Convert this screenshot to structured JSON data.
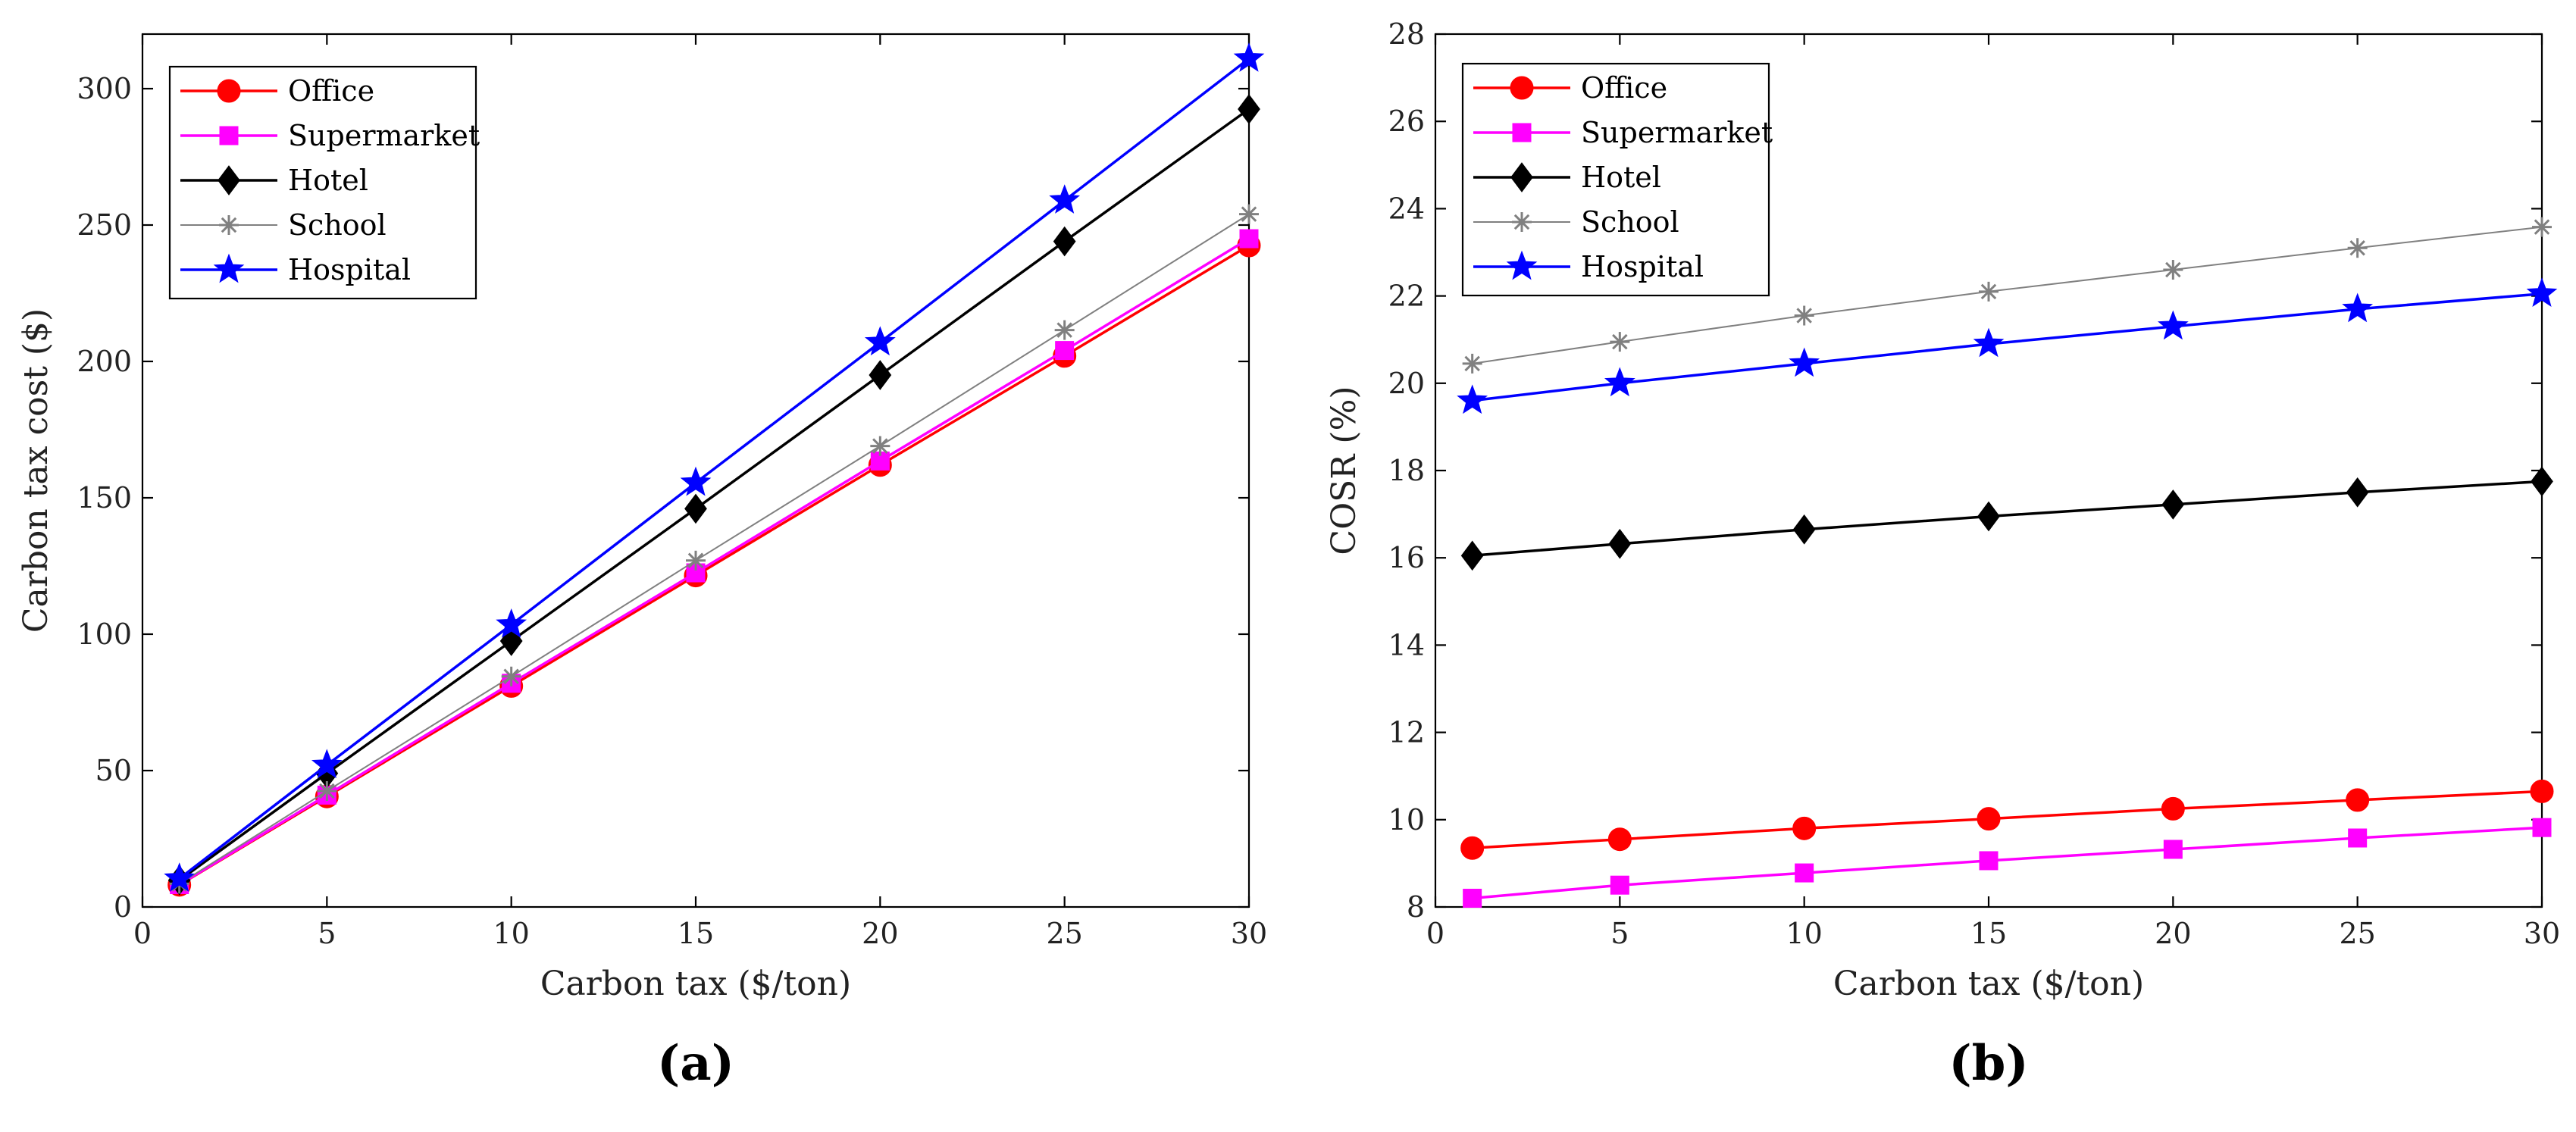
{
  "chart_data": [
    {
      "type": "line",
      "panel_label": "(a)",
      "xlabel": "Carbon tax ($/ton)",
      "ylabel": "Carbon tax cost ($)",
      "xlim": [
        0,
        30
      ],
      "ylim": [
        0,
        320
      ],
      "xticks": [
        0,
        5,
        10,
        15,
        20,
        25,
        30
      ],
      "yticks": [
        0,
        50,
        100,
        150,
        200,
        250,
        300
      ],
      "grid": false,
      "legend_position": "top-left",
      "x": [
        1,
        5,
        10,
        15,
        20,
        25,
        30
      ],
      "series": [
        {
          "name": "Office",
          "color": "#ff0000",
          "marker": "circle",
          "values": [
            8.1,
            40.5,
            81,
            121.5,
            162,
            202,
            242.5
          ]
        },
        {
          "name": "Supermarket",
          "color": "#ff00ff",
          "marker": "square",
          "values": [
            8.2,
            41,
            82,
            122.5,
            163.5,
            204,
            245
          ]
        },
        {
          "name": "Hotel",
          "color": "#000000",
          "marker": "diamond",
          "values": [
            9.8,
            49,
            97.5,
            146,
            195,
            244,
            292.5
          ]
        },
        {
          "name": "School",
          "color": "#808080",
          "marker": "asterisk",
          "values": [
            8.5,
            42.5,
            84.5,
            127,
            169,
            211.5,
            254
          ]
        },
        {
          "name": "Hospital",
          "color": "#0000ff",
          "marker": "star",
          "values": [
            10.4,
            52,
            103.5,
            155.5,
            207,
            259,
            311
          ]
        }
      ]
    },
    {
      "type": "line",
      "panel_label": "(b)",
      "xlabel": "Carbon tax ($/ton)",
      "ylabel": "COSR (%)",
      "xlim": [
        0,
        30
      ],
      "ylim": [
        8,
        28
      ],
      "xticks": [
        0,
        5,
        10,
        15,
        20,
        25,
        30
      ],
      "yticks": [
        8,
        10,
        12,
        14,
        16,
        18,
        20,
        22,
        24,
        26,
        28
      ],
      "grid": false,
      "legend_position": "top-left",
      "x": [
        1,
        5,
        10,
        15,
        20,
        25,
        30
      ],
      "series": [
        {
          "name": "Office",
          "color": "#ff0000",
          "marker": "circle",
          "values": [
            9.35,
            9.55,
            9.8,
            10.02,
            10.25,
            10.45,
            10.65
          ]
        },
        {
          "name": "Supermarket",
          "color": "#ff00ff",
          "marker": "square",
          "values": [
            8.2,
            8.5,
            8.78,
            9.06,
            9.32,
            9.58,
            9.82
          ]
        },
        {
          "name": "Hotel",
          "color": "#000000",
          "marker": "diamond",
          "values": [
            16.05,
            16.32,
            16.65,
            16.95,
            17.22,
            17.5,
            17.75
          ]
        },
        {
          "name": "School",
          "color": "#808080",
          "marker": "asterisk",
          "values": [
            20.45,
            20.95,
            21.55,
            22.1,
            22.6,
            23.1,
            23.58
          ]
        },
        {
          "name": "Hospital",
          "color": "#0000ff",
          "marker": "star",
          "values": [
            19.6,
            20.0,
            20.45,
            20.9,
            21.3,
            21.7,
            22.05
          ]
        }
      ]
    }
  ]
}
